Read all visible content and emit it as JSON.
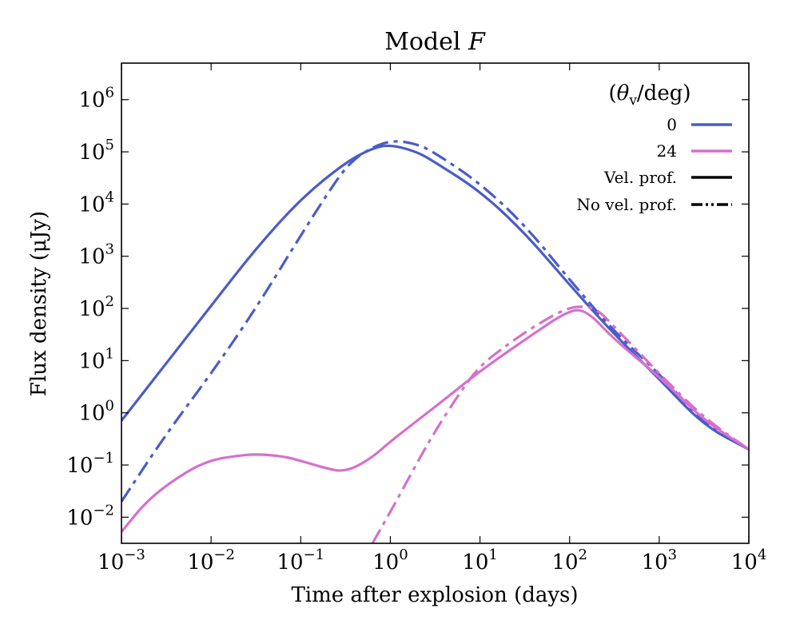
{
  "chart_data": {
    "type": "line",
    "title": {
      "main": "Model ",
      "italic": "F"
    },
    "xlabel": "Time after explosion (days)",
    "ylabel": "Flux density (μJy)",
    "xscale": "log",
    "yscale": "log",
    "xlim_exp": [
      -3,
      4
    ],
    "ylim_exp": [
      -2.5,
      6.7
    ],
    "x_ticks": [
      {
        "base": "10",
        "exp": "−3",
        "value": -3
      },
      {
        "base": "10",
        "exp": "−2",
        "value": -2
      },
      {
        "base": "10",
        "exp": "−1",
        "value": -1
      },
      {
        "base": "10",
        "exp": "0",
        "value": 0
      },
      {
        "base": "10",
        "exp": "1",
        "value": 1
      },
      {
        "base": "10",
        "exp": "2",
        "value": 2
      },
      {
        "base": "10",
        "exp": "3",
        "value": 3
      },
      {
        "base": "10",
        "exp": "4",
        "value": 4
      }
    ],
    "y_ticks": [
      {
        "base": "10",
        "exp": "−2",
        "value": -2
      },
      {
        "base": "10",
        "exp": "−1",
        "value": -1
      },
      {
        "base": "10",
        "exp": "0",
        "value": 0
      },
      {
        "base": "10",
        "exp": "1",
        "value": 1
      },
      {
        "base": "10",
        "exp": "2",
        "value": 2
      },
      {
        "base": "10",
        "exp": "3",
        "value": 3
      },
      {
        "base": "10",
        "exp": "4",
        "value": 4
      },
      {
        "base": "10",
        "exp": "5",
        "value": 5
      },
      {
        "base": "10",
        "exp": "6",
        "value": 6
      }
    ],
    "legend": {
      "title": "(θv/deg)",
      "title_theta": "θ",
      "title_sub": "v",
      "title_rest": "/deg)",
      "position": "top-right",
      "entries": [
        {
          "label": "0",
          "color": "#4a5cc8",
          "style": "solid"
        },
        {
          "label": "24",
          "color": "#d670cc",
          "style": "solid"
        },
        {
          "label": "Vel. prof.",
          "color": "#000000",
          "style": "solid"
        },
        {
          "label": "No vel. prof.",
          "color": "#000000",
          "style": "dashdot"
        }
      ]
    },
    "series": [
      {
        "name": "θv=0, Vel. prof.",
        "color": "#4a5cc8",
        "style": "solid",
        "log_x": [
          -3,
          -2.5,
          -2,
          -1.5,
          -1,
          -0.5,
          -0.2,
          0,
          0.3,
          0.5,
          1,
          1.5,
          2,
          2.5,
          3,
          3.5,
          4
        ],
        "log_y": [
          -0.15,
          0.95,
          2.05,
          3.15,
          4.1,
          4.8,
          5.07,
          5.14,
          5.0,
          4.8,
          4.25,
          3.45,
          2.45,
          1.5,
          0.65,
          -0.25,
          -0.7
        ]
      },
      {
        "name": "θv=0, No vel. prof.",
        "color": "#4a5cc8",
        "style": "dashdot",
        "log_x": [
          -3,
          -2.5,
          -2,
          -1.5,
          -1,
          -0.7,
          -0.5,
          -0.3,
          0,
          0.3,
          0.5,
          1,
          1.5,
          2,
          2.5,
          3,
          3.5,
          4
        ],
        "log_y": [
          -1.7,
          -0.4,
          0.75,
          2.0,
          3.4,
          4.2,
          4.7,
          5.0,
          5.23,
          5.15,
          4.98,
          4.4,
          3.6,
          2.55,
          1.55,
          0.75,
          -0.2,
          -0.7
        ]
      },
      {
        "name": "θv=24, Vel. prof.",
        "color": "#d670cc",
        "style": "solid",
        "log_x": [
          -3,
          -2.7,
          -2.3,
          -2,
          -1.7,
          -1.5,
          -1.2,
          -1,
          -0.7,
          -0.55,
          -0.4,
          -0.2,
          0,
          0.3,
          0.6,
          1,
          1.5,
          2,
          2.2,
          2.5,
          3,
          3.5,
          4
        ],
        "log_y": [
          -2.28,
          -1.65,
          -1.15,
          -0.9,
          -0.82,
          -0.79,
          -0.83,
          -0.92,
          -1.07,
          -1.12,
          -1.05,
          -0.85,
          -0.55,
          -0.15,
          0.25,
          0.8,
          1.4,
          1.98,
          1.95,
          1.4,
          0.7,
          -0.15,
          -0.7
        ]
      },
      {
        "name": "θv=24, No vel. prof.",
        "color": "#d670cc",
        "style": "dashdot",
        "log_x": [
          -0.2,
          0,
          0.3,
          0.5,
          0.8,
          1,
          1.3,
          1.6,
          1.9,
          2.1,
          2.3,
          2.5,
          3,
          3.5,
          4
        ],
        "log_y": [
          -2.5,
          -1.9,
          -0.95,
          -0.35,
          0.45,
          0.9,
          1.3,
          1.65,
          1.95,
          2.05,
          2.0,
          1.65,
          0.75,
          -0.1,
          -0.7
        ]
      }
    ]
  }
}
